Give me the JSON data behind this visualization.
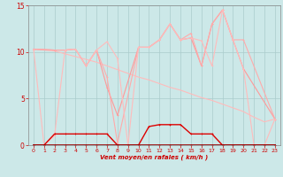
{
  "xlabel": "Vent moyen/en rafales ( km/h )",
  "xlim": [
    -0.5,
    23.5
  ],
  "ylim": [
    0,
    15
  ],
  "yticks": [
    0,
    5,
    10,
    15
  ],
  "xticks": [
    0,
    1,
    2,
    3,
    4,
    5,
    6,
    7,
    8,
    9,
    10,
    11,
    12,
    13,
    14,
    15,
    16,
    17,
    18,
    19,
    20,
    21,
    22,
    23
  ],
  "bg_color": "#cce8e8",
  "grid_color": "#aacccc",
  "series": [
    {
      "x": [
        0,
        2,
        3,
        4,
        5,
        6,
        7,
        8,
        9,
        10,
        11,
        12,
        13,
        14,
        15,
        16,
        17,
        18,
        19,
        20,
        21,
        22,
        23
      ],
      "y": [
        10.3,
        10.1,
        9.8,
        9.5,
        9.2,
        8.9,
        8.5,
        8.1,
        7.7,
        7.3,
        7.0,
        6.6,
        6.2,
        5.9,
        5.5,
        5.1,
        4.8,
        4.4,
        4.0,
        3.6,
        3.0,
        2.5,
        2.8
      ],
      "color": "#ffbbbb",
      "lw": 0.8,
      "marker": null
    },
    {
      "x": [
        0,
        2,
        3,
        4,
        5,
        6,
        7,
        8,
        10,
        11,
        12,
        13,
        14,
        15,
        16,
        17,
        18,
        19,
        20,
        23
      ],
      "y": [
        10.3,
        10.2,
        10.2,
        10.3,
        8.5,
        10.2,
        6.2,
        3.2,
        10.5,
        10.5,
        11.3,
        13.0,
        11.3,
        11.5,
        8.5,
        13.0,
        14.5,
        11.3,
        8.2,
        2.8
      ],
      "color": "#ff9999",
      "lw": 0.8,
      "marker": "+"
    },
    {
      "x": [
        0,
        2,
        3,
        4,
        5,
        6,
        7,
        8,
        10,
        11,
        12,
        13,
        14,
        15,
        16,
        17,
        18,
        19,
        20,
        23
      ],
      "y": [
        10.3,
        10.2,
        10.2,
        10.3,
        8.5,
        10.2,
        7.3,
        0.2,
        10.5,
        10.5,
        11.3,
        13.0,
        11.3,
        12.0,
        8.5,
        13.0,
        14.5,
        11.3,
        11.3,
        2.8
      ],
      "color": "#ffaaaa",
      "lw": 0.8,
      "marker": "+"
    },
    {
      "x": [
        0,
        1,
        2,
        3,
        4,
        5,
        6,
        7,
        8,
        9,
        10,
        11,
        12,
        13,
        14,
        15,
        16,
        17,
        18,
        19,
        20,
        21,
        22,
        23
      ],
      "y": [
        10.3,
        0.0,
        1.0,
        10.2,
        10.3,
        8.5,
        10.2,
        11.1,
        9.3,
        0.0,
        10.5,
        10.5,
        11.3,
        13.0,
        11.3,
        11.5,
        11.2,
        8.5,
        14.5,
        11.3,
        8.2,
        0.0,
        0.0,
        2.8
      ],
      "color": "#ffbbbb",
      "lw": 0.8,
      "marker": "+"
    },
    {
      "x": [
        0,
        1,
        2,
        3,
        4,
        5,
        6,
        7,
        8,
        9,
        10,
        11,
        12,
        13,
        14,
        15,
        16,
        17,
        18,
        19,
        20,
        21,
        22,
        23
      ],
      "y": [
        0.0,
        0.0,
        1.2,
        1.2,
        1.2,
        1.2,
        1.2,
        1.2,
        0.0,
        0.0,
        0.0,
        2.0,
        2.2,
        2.2,
        2.2,
        1.2,
        1.2,
        1.2,
        0.0,
        0.0,
        0.0,
        0.0,
        0.0,
        0.0
      ],
      "color": "#dd0000",
      "lw": 1.0,
      "marker": "+"
    },
    {
      "x": [
        0,
        1,
        2,
        3,
        4,
        5,
        6,
        7,
        8,
        9,
        10,
        11,
        12,
        13,
        14,
        15,
        16,
        17,
        18,
        19,
        20,
        21,
        22,
        23
      ],
      "y": [
        0.0,
        0.0,
        0.0,
        0.0,
        0.0,
        0.0,
        0.0,
        0.0,
        0.0,
        0.0,
        0.0,
        0.0,
        0.0,
        0.0,
        0.0,
        0.0,
        0.0,
        0.0,
        0.0,
        0.0,
        0.0,
        0.0,
        0.0,
        0.0
      ],
      "color": "#990000",
      "lw": 1.2,
      "marker": "+"
    }
  ]
}
